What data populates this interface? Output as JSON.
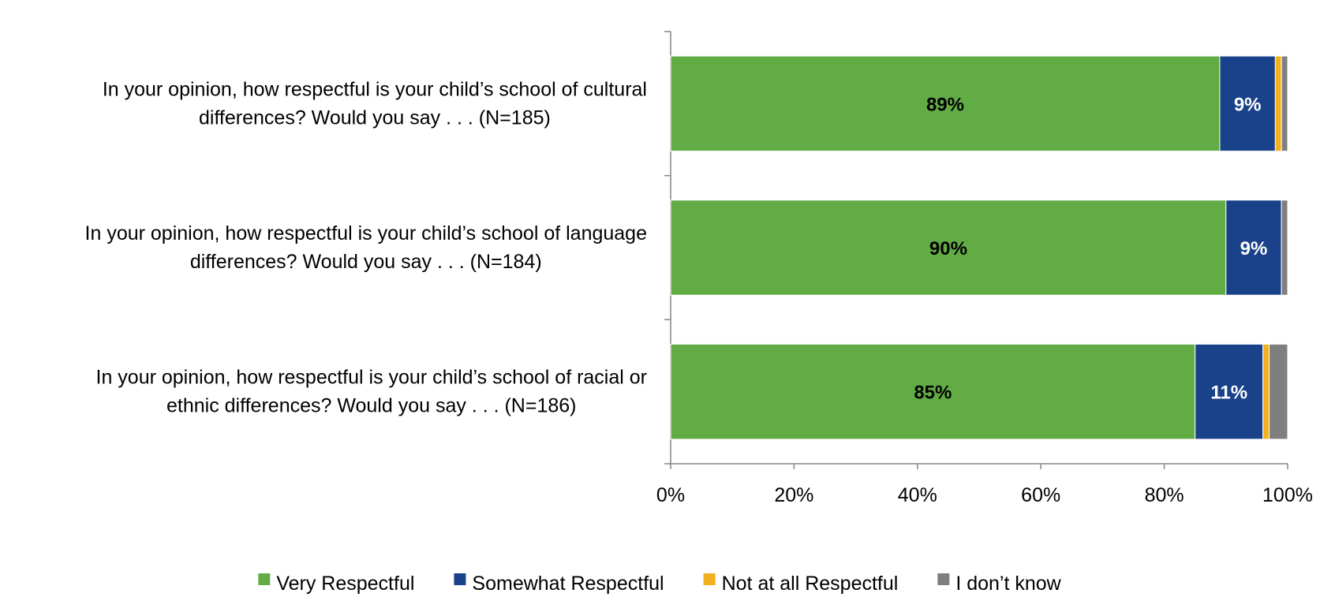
{
  "chart_data": {
    "type": "bar",
    "orientation": "horizontal",
    "stacked": true,
    "categories": [
      [
        "In your opinion, how respectful is your child’s school of cultural",
        "differences? Would you say . . . (N=185)"
      ],
      [
        "In your opinion, how respectful is your child’s school of language",
        "differences? Would you say . . . (N=184)"
      ],
      [
        "In your opinion, how respectful is your child’s school of racial or",
        "ethnic differences? Would you say . . . (N=186)"
      ]
    ],
    "series": [
      {
        "name": "Very Respectful",
        "color": "#62AC46",
        "values": [
          89,
          90,
          85
        ],
        "labels": [
          "89%",
          "90%",
          "85%"
        ],
        "label_color": "#000000"
      },
      {
        "name": "Somewhat Respectful",
        "color": "#1A428A",
        "values": [
          9,
          9,
          11
        ],
        "labels": [
          "9%",
          "9%",
          "11%"
        ],
        "label_color": "#ffffff"
      },
      {
        "name": "Not at all Respectful",
        "color": "#F2B021",
        "values": [
          1,
          0,
          1
        ],
        "labels": [
          "",
          "",
          ""
        ],
        "label_color": "#000000"
      },
      {
        "name": "I don’t know",
        "color": "#7F7F7F",
        "values": [
          1,
          1,
          3
        ],
        "labels": [
          "",
          "",
          ""
        ],
        "label_color": "#000000"
      }
    ],
    "xlim": [
      0,
      100
    ],
    "x_ticks": [
      0,
      20,
      40,
      60,
      80,
      100
    ],
    "x_tick_labels": [
      "0%",
      "20%",
      "40%",
      "60%",
      "80%",
      "100%"
    ],
    "xlabel": "",
    "ylabel": "",
    "grid": false,
    "legend_position": "bottom"
  }
}
